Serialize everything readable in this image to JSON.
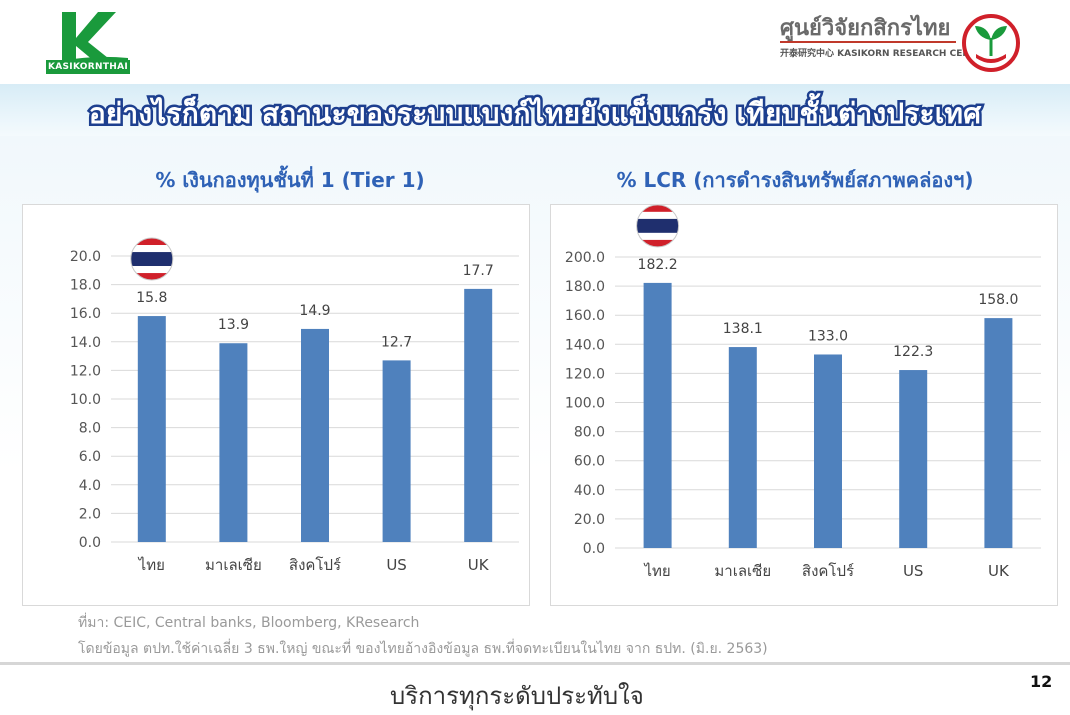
{
  "brand": {
    "left_logo_text": "KASIKORNTHAI",
    "right_logo_name": "ศูนย์วิจัยกสิกรไทย",
    "right_logo_sub": "开泰研究中心 KASIKORN RESEARCH CENTER",
    "green": "#1a9a3c",
    "red": "#c0392b"
  },
  "headline": "อย่างไรก็ตาม สถานะของระบบแบงก์ไทยยังแข็งแกร่ง เทียบชั้นต่างประเทศ",
  "chart_data": [
    {
      "type": "bar",
      "title": "% เงินกองทุนชั้นที่ 1 (Tier 1)",
      "categories": [
        "ไทย",
        "มาเลเซีย",
        "สิงคโปร์",
        "US",
        "UK"
      ],
      "values": [
        15.8,
        13.9,
        14.9,
        12.7,
        17.7
      ],
      "labels": [
        "15.8",
        "13.9",
        "14.9",
        "12.7",
        "17.7"
      ],
      "yticks": [
        "0.0",
        "2.0",
        "4.0",
        "6.0",
        "8.0",
        "10.0",
        "12.0",
        "14.0",
        "16.0",
        "18.0",
        "20.0"
      ],
      "ylim": [
        0,
        20
      ],
      "grid": true,
      "bar_color": "#4f81bd",
      "flag_on_category": "ไทย"
    },
    {
      "type": "bar",
      "title": "% LCR (การดำรงสินทรัพย์สภาพคล่องฯ)",
      "categories": [
        "ไทย",
        "มาเลเซีย",
        "สิงคโปร์",
        "US",
        "UK"
      ],
      "values": [
        182.2,
        138.1,
        133.0,
        122.3,
        158.0
      ],
      "labels": [
        "182.2",
        "138.1",
        "133.0",
        "122.3",
        "158.0"
      ],
      "yticks": [
        "0.0",
        "20.0",
        "40.0",
        "60.0",
        "80.0",
        "100.0",
        "120.0",
        "140.0",
        "160.0",
        "180.0",
        "200.0"
      ],
      "ylim": [
        0,
        200
      ],
      "grid": true,
      "bar_color": "#4f81bd",
      "flag_on_category": "ไทย"
    }
  ],
  "source_line1": "ที่มา: CEIC, Central banks, Bloomberg, KResearch",
  "source_line2": "โดยข้อมูล ตปท.ใช้ค่าเฉลี่ย 3 ธพ.ใหญ่ ขณะที่ ของไทยอ้างอิงข้อมูล ธพ.ที่จดทะเบียนในไทย จาก ธปท. (มิ.ย. 2563)",
  "footer": {
    "tagline": "บริการทุกระดับประทับใจ",
    "page_number": "12"
  }
}
